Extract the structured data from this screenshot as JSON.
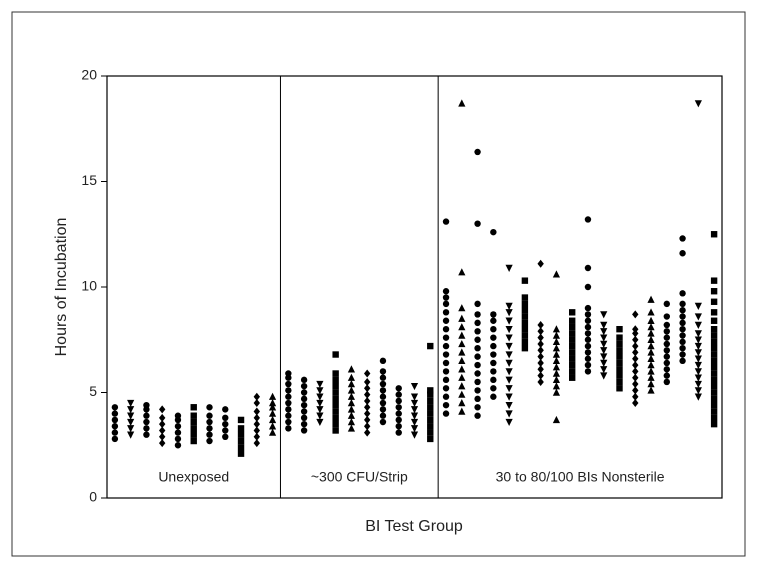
{
  "chart_data": {
    "type": "strip",
    "xlabel": "BI Test Group",
    "ylabel": "Hours of Incubation",
    "ylim": [
      0,
      20
    ],
    "yticks": [
      0,
      5,
      10,
      15,
      20
    ],
    "color": "#000000",
    "groups": [
      {
        "label": "Unexposed",
        "columns": [
          {
            "marker": "circle",
            "values": [
              2.8,
              3.1,
              3.4,
              3.7,
              4.0,
              4.3
            ]
          },
          {
            "marker": "triangle-down",
            "values": [
              3.0,
              3.3,
              3.6,
              3.9,
              4.2,
              4.5
            ]
          },
          {
            "marker": "circle",
            "values": [
              3.0,
              3.3,
              3.6,
              3.9,
              4.2,
              4.4
            ]
          },
          {
            "marker": "diamond",
            "values": [
              2.6,
              2.9,
              3.2,
              3.5,
              3.8,
              4.2
            ]
          },
          {
            "marker": "circle",
            "values": [
              2.5,
              2.8,
              3.1,
              3.4,
              3.7,
              3.9
            ]
          },
          {
            "marker": "square",
            "values": [
              2.7,
              3.0,
              3.3,
              3.6,
              3.9,
              4.3
            ]
          },
          {
            "marker": "circle",
            "values": [
              2.7,
              3.0,
              3.3,
              3.6,
              3.9,
              4.3
            ]
          },
          {
            "marker": "circle",
            "values": [
              2.9,
              3.2,
              3.5,
              3.8,
              4.2
            ]
          },
          {
            "marker": "square",
            "values": [
              2.1,
              2.4,
              2.7,
              3.0,
              3.3,
              3.7
            ]
          },
          {
            "marker": "diamond",
            "values": [
              2.6,
              2.9,
              3.2,
              3.5,
              3.8,
              4.1,
              4.5,
              4.8
            ]
          },
          {
            "marker": "triangle",
            "values": [
              3.1,
              3.4,
              3.7,
              4.0,
              4.3,
              4.5,
              4.8
            ]
          }
        ]
      },
      {
        "label": "~300 CFU/Strip",
        "columns": [
          {
            "marker": "circle",
            "values": [
              3.3,
              3.6,
              3.9,
              4.2,
              4.5,
              4.8,
              5.1,
              5.4,
              5.7,
              5.9
            ]
          },
          {
            "marker": "circle",
            "values": [
              3.2,
              3.5,
              3.8,
              4.1,
              4.4,
              4.7,
              5.0,
              5.3,
              5.6
            ]
          },
          {
            "marker": "triangle-down",
            "values": [
              3.6,
              3.9,
              4.2,
              4.5,
              4.8,
              5.1,
              5.4
            ]
          },
          {
            "marker": "square",
            "values": [
              3.2,
              3.5,
              3.8,
              4.1,
              4.4,
              4.7,
              5.0,
              5.3,
              5.6,
              5.9,
              6.8
            ]
          },
          {
            "marker": "triangle",
            "values": [
              3.3,
              3.6,
              3.9,
              4.2,
              4.5,
              4.8,
              5.1,
              5.4,
              5.7,
              6.1
            ]
          },
          {
            "marker": "diamond",
            "values": [
              3.1,
              3.4,
              3.7,
              4.0,
              4.3,
              4.6,
              4.9,
              5.2,
              5.5,
              5.9
            ]
          },
          {
            "marker": "circle",
            "values": [
              3.6,
              3.9,
              4.2,
              4.5,
              4.8,
              5.1,
              5.4,
              5.7,
              6.0,
              6.5
            ]
          },
          {
            "marker": "circle",
            "values": [
              3.1,
              3.4,
              3.7,
              4.0,
              4.3,
              4.6,
              4.9,
              5.2
            ]
          },
          {
            "marker": "triangle-down",
            "values": [
              3.0,
              3.3,
              3.6,
              3.9,
              4.2,
              4.5,
              4.8,
              5.3
            ]
          },
          {
            "marker": "square",
            "values": [
              2.8,
              3.1,
              3.4,
              3.7,
              4.0,
              4.3,
              4.6,
              4.9,
              5.1,
              7.2
            ]
          }
        ]
      },
      {
        "label": "30 to 80/100 BIs Nonsterile",
        "columns": [
          {
            "marker": "circle",
            "values": [
              4.0,
              4.4,
              4.8,
              5.2,
              5.6,
              6.0,
              6.4,
              6.8,
              7.2,
              7.6,
              8.0,
              8.4,
              8.8,
              9.2,
              9.5,
              9.8,
              13.1
            ]
          },
          {
            "marker": "triangle",
            "values": [
              4.1,
              4.5,
              4.9,
              5.3,
              5.7,
              6.1,
              6.5,
              6.9,
              7.3,
              7.7,
              8.1,
              8.5,
              9.0,
              10.7,
              18.7
            ]
          },
          {
            "marker": "circle",
            "values": [
              3.9,
              4.3,
              4.7,
              5.1,
              5.5,
              5.9,
              6.3,
              6.7,
              7.1,
              7.5,
              7.9,
              8.3,
              8.7,
              9.2,
              13.0,
              16.4
            ]
          },
          {
            "marker": "circle",
            "values": [
              4.8,
              5.2,
              5.6,
              6.0,
              6.4,
              6.8,
              7.2,
              7.6,
              8.0,
              8.4,
              8.7,
              12.6
            ]
          },
          {
            "marker": "triangle-down",
            "values": [
              3.6,
              4.0,
              4.4,
              4.8,
              5.2,
              5.6,
              6.0,
              6.4,
              6.8,
              7.2,
              7.6,
              8.0,
              8.4,
              8.8,
              9.1,
              10.9
            ]
          },
          {
            "marker": "square",
            "values": [
              7.1,
              7.4,
              7.7,
              8.0,
              8.3,
              8.6,
              8.9,
              9.2,
              9.5,
              10.3
            ]
          },
          {
            "marker": "diamond",
            "values": [
              5.5,
              5.8,
              6.1,
              6.4,
              6.7,
              7.0,
              7.3,
              7.6,
              7.9,
              8.2,
              11.1
            ]
          },
          {
            "marker": "triangle",
            "values": [
              3.7,
              5.0,
              5.3,
              5.6,
              5.9,
              6.2,
              6.5,
              6.8,
              7.1,
              7.4,
              7.7,
              8.0,
              10.6
            ]
          },
          {
            "marker": "square",
            "values": [
              5.7,
              6.0,
              6.3,
              6.6,
              6.9,
              7.2,
              7.5,
              7.8,
              8.1,
              8.4,
              8.8
            ]
          },
          {
            "marker": "circle",
            "values": [
              6.0,
              6.3,
              6.6,
              6.9,
              7.2,
              7.5,
              7.8,
              8.1,
              8.4,
              8.7,
              9.0,
              10.0,
              10.9,
              13.2
            ]
          },
          {
            "marker": "triangle-down",
            "values": [
              5.8,
              6.1,
              6.4,
              6.7,
              7.0,
              7.3,
              7.6,
              7.9,
              8.2,
              8.7
            ]
          },
          {
            "marker": "square",
            "values": [
              5.2,
              5.5,
              5.8,
              6.1,
              6.4,
              6.7,
              7.0,
              7.3,
              7.6,
              8.0
            ]
          },
          {
            "marker": "diamond",
            "values": [
              4.5,
              4.8,
              5.1,
              5.4,
              5.7,
              6.0,
              6.3,
              6.6,
              6.9,
              7.2,
              7.5,
              7.8,
              8.0,
              8.7
            ]
          },
          {
            "marker": "triangle",
            "values": [
              5.1,
              5.4,
              5.7,
              6.0,
              6.3,
              6.6,
              6.9,
              7.2,
              7.5,
              7.8,
              8.1,
              8.4,
              8.8,
              9.4
            ]
          },
          {
            "marker": "circle",
            "values": [
              5.5,
              5.8,
              6.1,
              6.4,
              6.7,
              7.0,
              7.3,
              7.6,
              7.9,
              8.2,
              8.6,
              9.2
            ]
          },
          {
            "marker": "circle",
            "values": [
              6.5,
              6.8,
              7.1,
              7.4,
              7.7,
              8.0,
              8.3,
              8.6,
              8.9,
              9.2,
              9.7,
              11.6,
              12.3
            ]
          },
          {
            "marker": "triangle-down",
            "values": [
              4.8,
              5.1,
              5.4,
              5.7,
              6.0,
              6.3,
              6.6,
              6.9,
              7.2,
              7.5,
              7.8,
              8.2,
              8.6,
              9.1,
              18.7
            ]
          },
          {
            "marker": "square",
            "values": [
              3.5,
              3.8,
              4.1,
              4.4,
              4.7,
              5.0,
              5.3,
              5.6,
              5.9,
              6.2,
              6.5,
              6.8,
              7.1,
              7.4,
              7.7,
              8.0,
              8.4,
              8.8,
              9.3,
              9.8,
              10.3,
              12.5
            ]
          }
        ]
      }
    ]
  }
}
